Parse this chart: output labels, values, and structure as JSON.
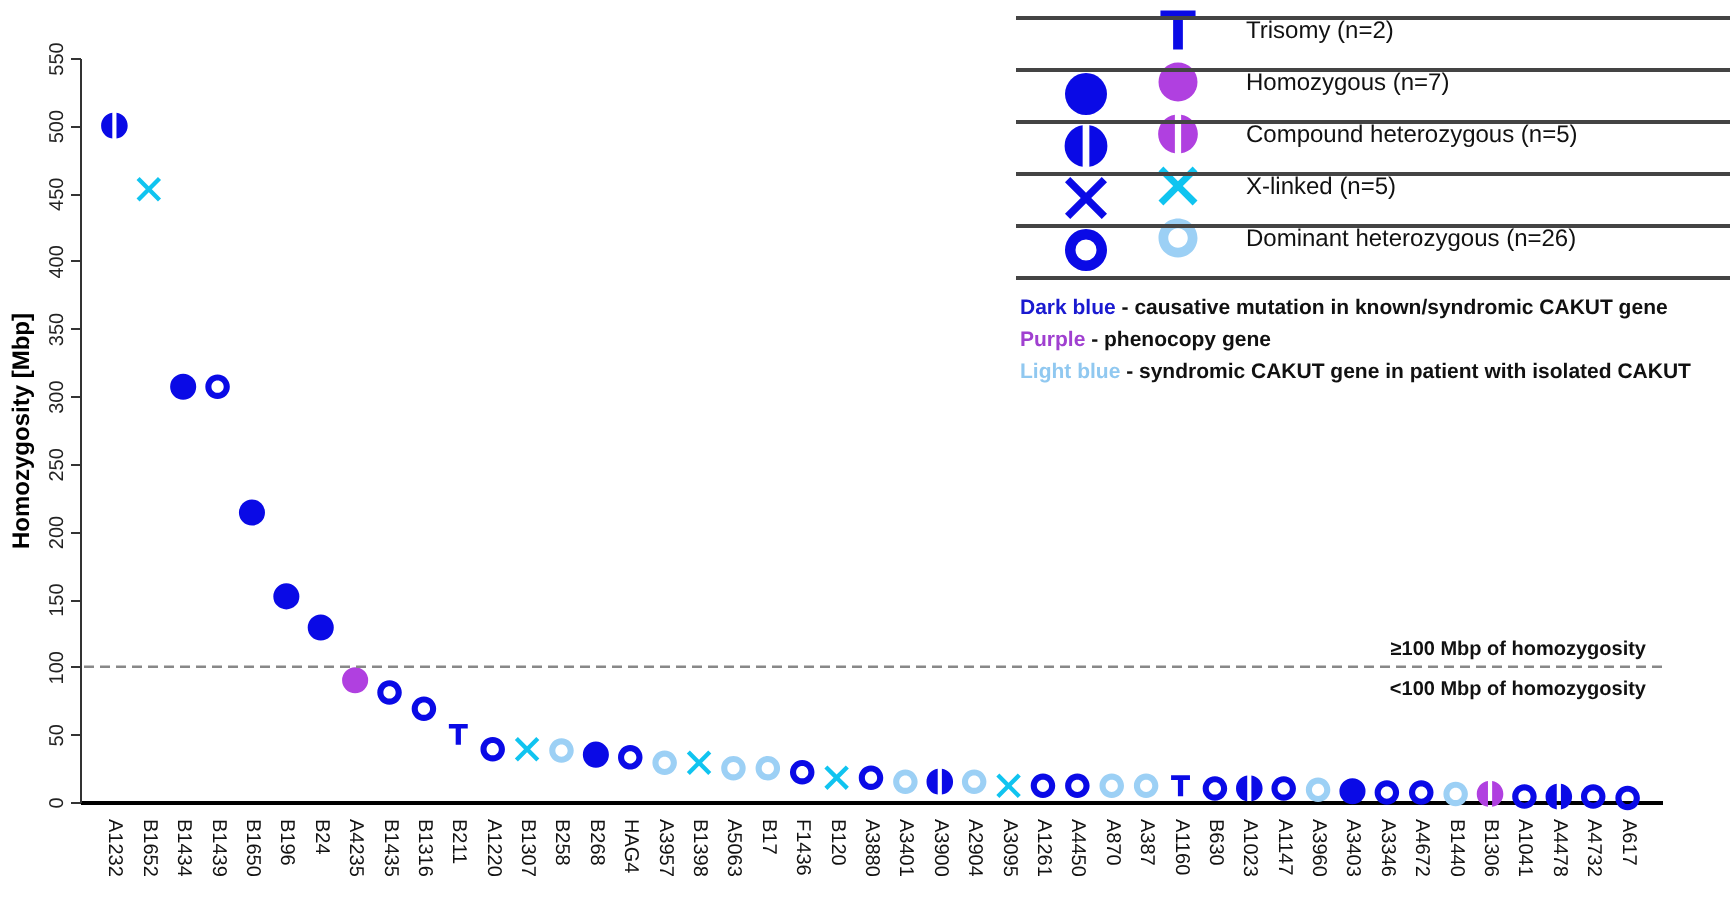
{
  "chart_data": {
    "type": "scatter",
    "ylabel": "Homozygosity [Mbp]",
    "categories": [
      "A1232",
      "B1652",
      "B1434",
      "B1439",
      "B1650",
      "B196",
      "B24",
      "A4235",
      "B1435",
      "B1316",
      "B211",
      "A1220",
      "B1307",
      "B258",
      "B268",
      "HAG4",
      "A3957",
      "B1398",
      "A5063",
      "B17",
      "F1436",
      "B120",
      "A3880",
      "A3401",
      "A3900",
      "A2904",
      "A3095",
      "A1261",
      "A4450",
      "A870",
      "A387",
      "A1160",
      "B630",
      "A1023",
      "A1147",
      "A3960",
      "A3403",
      "A3346",
      "A4672",
      "B1440",
      "B1306",
      "A1041",
      "A4478",
      "A4732",
      "A617"
    ],
    "ylim": [
      0,
      550
    ],
    "yticks": [
      0,
      50,
      100,
      150,
      200,
      250,
      300,
      350,
      400,
      450,
      500,
      550
    ],
    "grid": false,
    "legend": "top right",
    "series": [
      {
        "name": "Trisomy (n=2)",
        "color": "#0a0ae6",
        "x": [
          "B211",
          "A1160"
        ],
        "values": [
          50,
          12
        ]
      },
      {
        "color": "#0a0ae6",
        "marker": "circle",
        "x": [
          "B1434",
          "B1650",
          "B196",
          "B24",
          "B268",
          "A3403"
        ],
        "values": [
          307,
          214,
          152,
          129,
          35,
          8
        ]
      },
      {
        "name": "Homozygous (n=7)",
        "color": "#b040e0",
        "marker": "circle",
        "x": [
          "A4235"
        ],
        "values": [
          90
        ]
      },
      {
        "color": "#0a0ae6",
        "x": [
          "A1232",
          "A3900",
          "A1023",
          "A4478"
        ],
        "values": [
          500,
          15,
          10,
          4
        ]
      },
      {
        "name": "Compound heterozygous (n=5)",
        "color": "#b040e0",
        "x": [
          "B1306"
        ],
        "values": [
          6
        ]
      },
      {
        "color": "#0a0ae6",
        "marker": "cross",
        "values": [
          null,
          null,
          null,
          null,
          null,
          null,
          null,
          null,
          null,
          null,
          null,
          null,
          null,
          null,
          null,
          null,
          null,
          null,
          null,
          null,
          null,
          null,
          null,
          null,
          null,
          null,
          null,
          null,
          null,
          null,
          null,
          null,
          null,
          null,
          null,
          null,
          null,
          null,
          null,
          null,
          null,
          null,
          null,
          null,
          null
        ]
      },
      {
        "name": "X-linked (n=5)",
        "color": "#10c4f0",
        "marker": "cross",
        "x": [
          "B1652",
          "B1307",
          "B1398",
          "B120",
          "A3095"
        ],
        "values": [
          453,
          39,
          29,
          18,
          12
        ]
      },
      {
        "color": "#0a0ae6",
        "x": [
          "B1439",
          "B1435",
          "B1316",
          "A1220",
          "HAG4",
          "F1436",
          "A3880",
          "A1261",
          "A4450",
          "B630",
          "A1147",
          "A3346",
          "A4672",
          "A1041",
          "A4732",
          "A617"
        ],
        "values": [
          307,
          81,
          69,
          39,
          33,
          22,
          18,
          12,
          12,
          10,
          10,
          7,
          7,
          4,
          4,
          3
        ]
      },
      {
        "name": "Dominant heterozygous (n=26)",
        "color": "#9cd0f5",
        "x": [
          "B258",
          "A3957",
          "A5063",
          "B17",
          "A3401",
          "A2904",
          "A870",
          "A387",
          "A3960",
          "B1440"
        ],
        "values": [
          38,
          29,
          25,
          25,
          15,
          15,
          12,
          12,
          9,
          6
        ]
      }
    ],
    "ref_lines": [
      {
        "axis": "y",
        "value": 100,
        "label": "≥100 Mbp of homozygosity",
        "color": "#888888",
        "line_style": "dashed"
      }
    ],
    "annotations": [
      {
        "text": "<100 Mbp of homozygosity",
        "y": 100
      },
      "Dark blue - causative mutation in known/syndromic CAKUT gene",
      "Purple - phenocopy gene",
      "Light blue - syndromic CAKUT gene in patient with isolated CAKUT"
    ]
  }
}
